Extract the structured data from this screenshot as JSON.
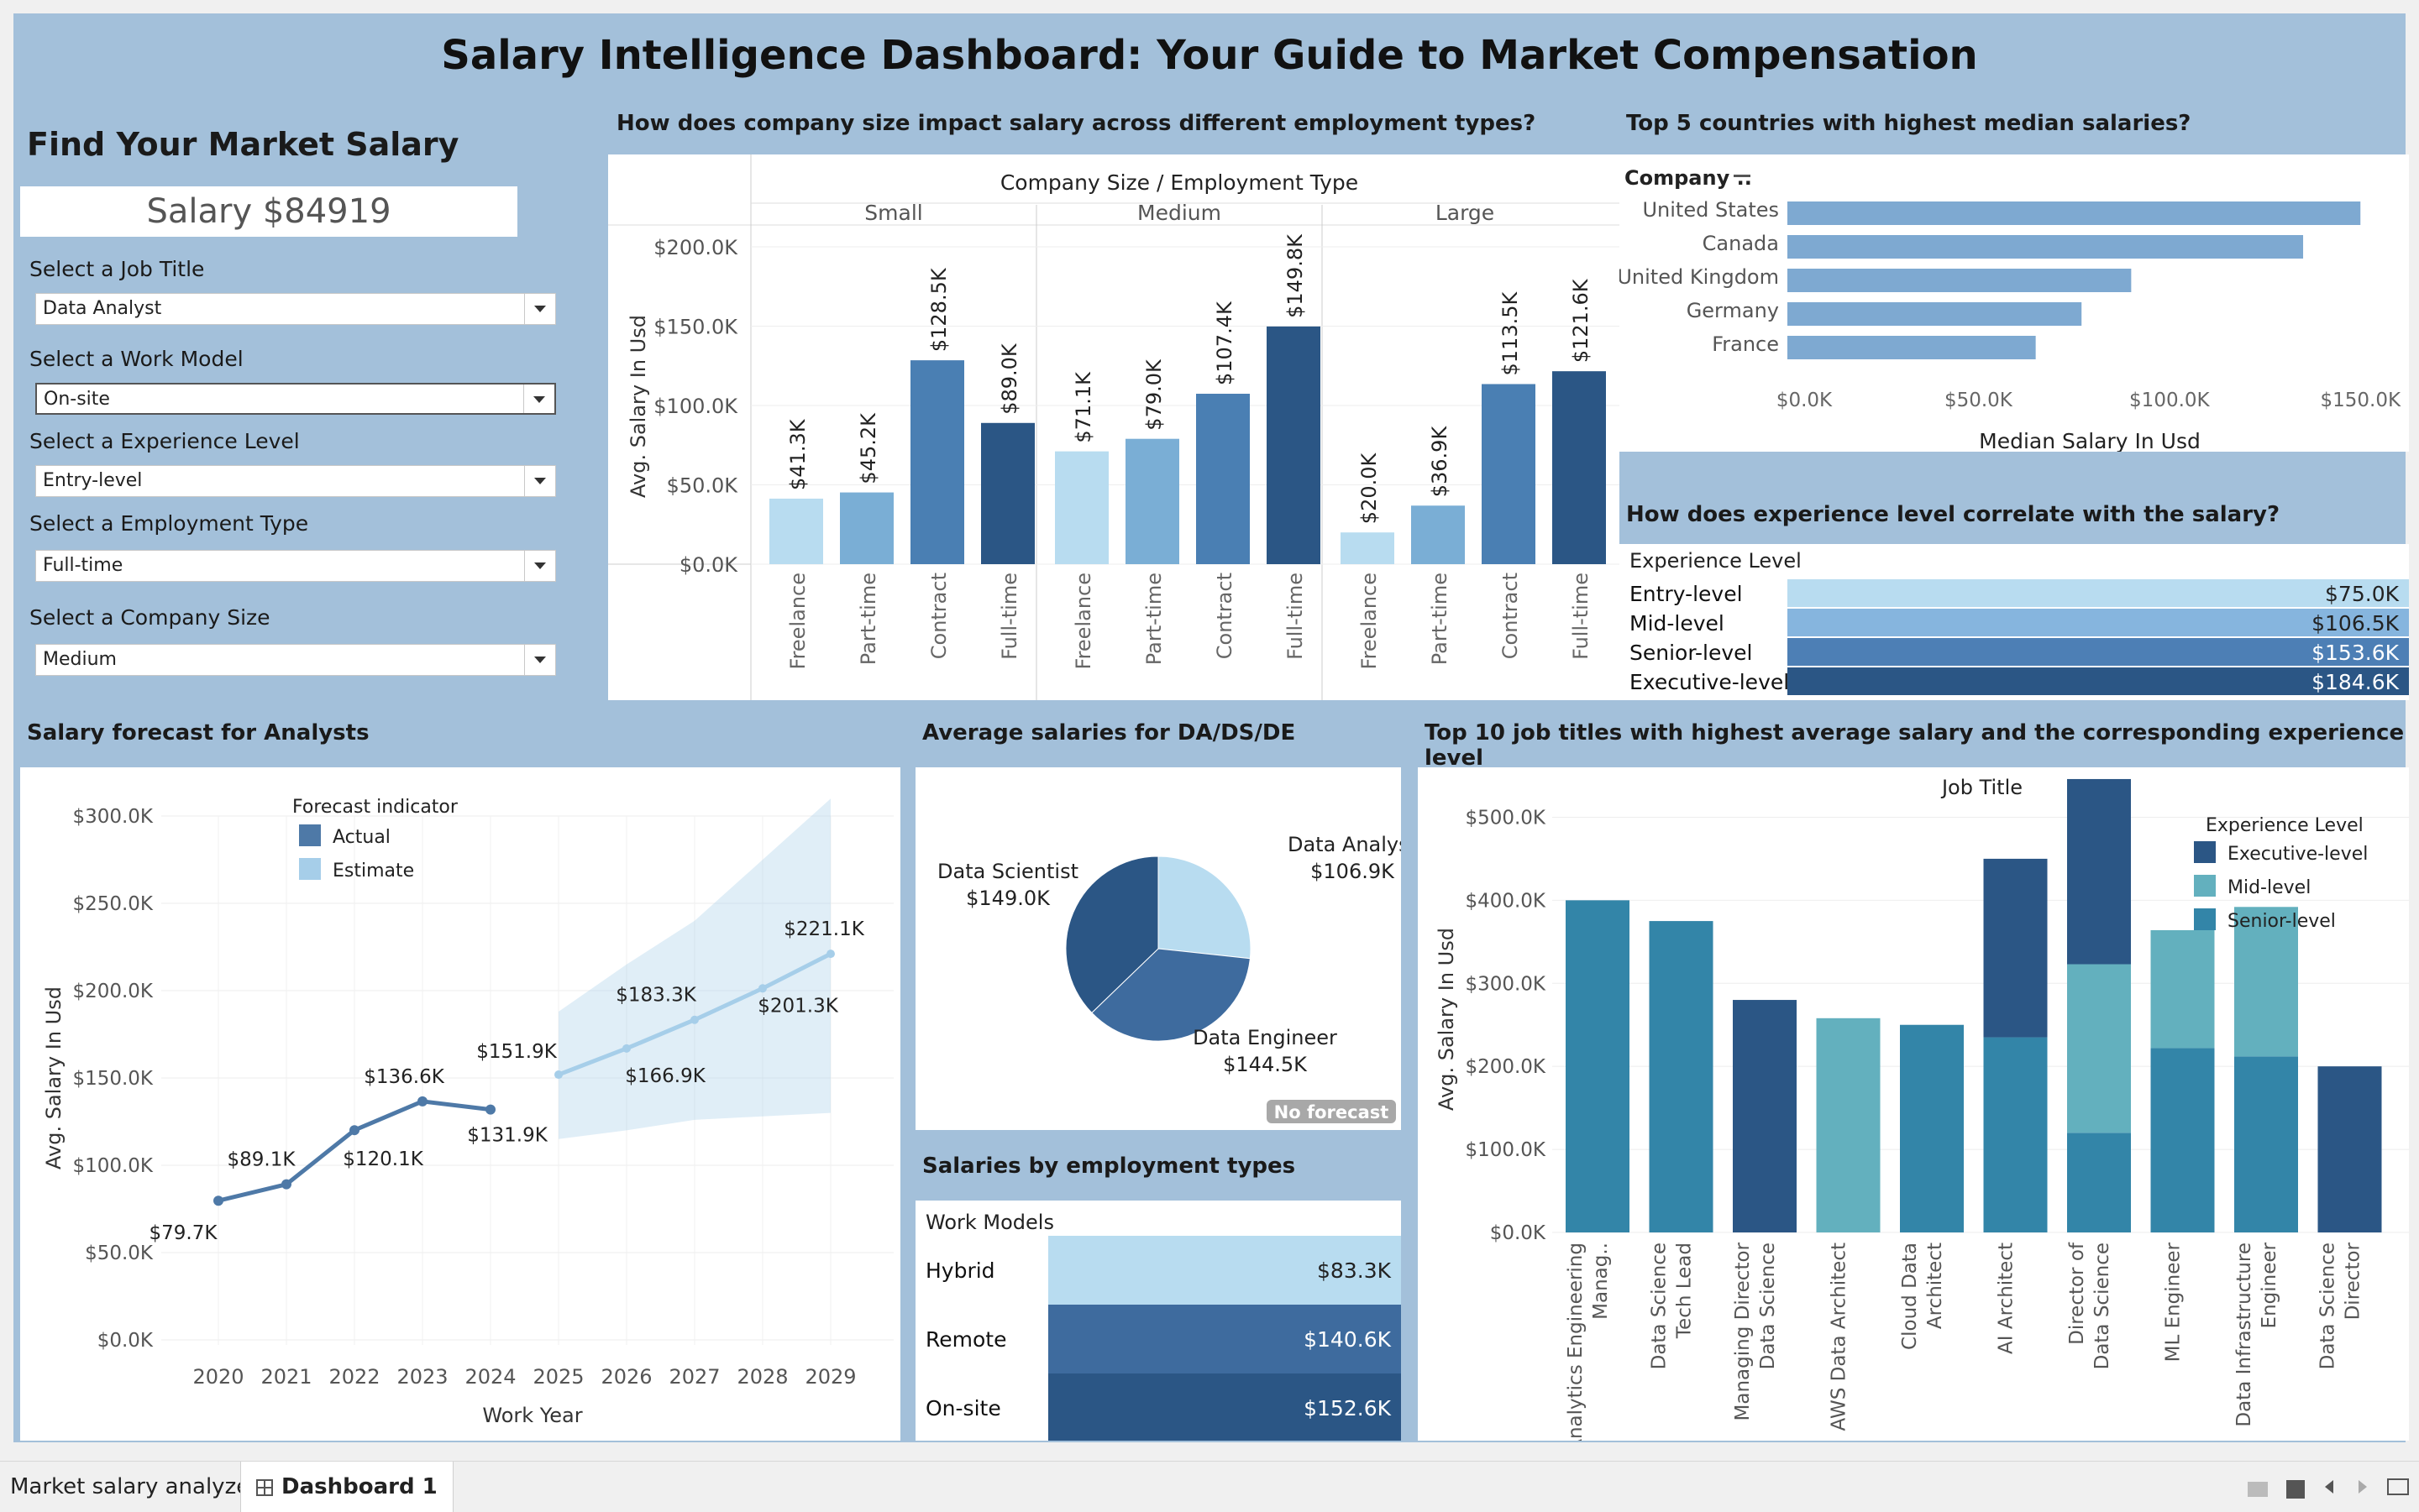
{
  "title": "Salary Intelligence Dashboard: Your Guide to Market Compensation",
  "filters": {
    "heading": "Find Your Market Salary",
    "salary": "Salary $84919",
    "job_title_label": "Select a Job Title",
    "job_title_value": "Data Analyst",
    "work_model_label": "Select a Work Model",
    "work_model_value": "On-site",
    "experience_label": "Select a Experience Level",
    "experience_value": "Entry-level",
    "employment_label": "Select a Employment Type",
    "employment_value": "Full-time",
    "company_size_label": "Select a Company Size",
    "company_size_value": "Medium"
  },
  "company_size_chart": {
    "question": "How does company size impact salary across different employment types?",
    "header": "Company Size  /  Employment Type",
    "ylabel": "Avg. Salary In Usd",
    "yticks": [
      "$200.0K",
      "$150.0K",
      "$100.0K",
      "$50.0K",
      "$0.0K"
    ],
    "colors": [
      "#b8dcf0",
      "#7aaed5",
      "#4a7fb3",
      "#2b5685"
    ]
  },
  "countries_chart": {
    "question": "Top 5 countries with highest median salaries?",
    "header": "Company ..",
    "xlabel": "Median Salary In Usd",
    "xticks": [
      "$0.0K",
      "$50.0K",
      "$100.0K",
      "$150.0K"
    ],
    "color": "#7ea9d1"
  },
  "experience_chart": {
    "question": "How does experience level correlate with the salary?",
    "header": "Experience Level",
    "rows": [
      {
        "label": "Entry-level",
        "value": "$75.0K",
        "color": "#b8dcf0",
        "text_color": "#222"
      },
      {
        "label": "Mid-level",
        "value": "$106.5K",
        "color": "#86b5de",
        "text_color": "#222"
      },
      {
        "label": "Senior-level",
        "value": "$153.6K",
        "color": "#4d7fb5",
        "text_color": "#fff"
      },
      {
        "label": "Executive-level",
        "value": "$184.6K",
        "color": "#2b5685",
        "text_color": "#fff"
      }
    ]
  },
  "forecast_chart": {
    "question": "Salary forecast for Analysts",
    "legend_title": "Forecast indicator",
    "legend_actual": "Actual",
    "legend_estimate": "Estimate",
    "ylabel": "Avg. Salary In Usd",
    "xlabel": "Work Year",
    "yticks": [
      "$300.0K",
      "$250.0K",
      "$200.0K",
      "$150.0K",
      "$100.0K",
      "$50.0K",
      "$0.0K"
    ],
    "actual_color": "#4e79a7",
    "estimate_color": "#a6cee9"
  },
  "pie_chart": {
    "question": "Average salaries for DA/DS/DE",
    "badge": "No forecast"
  },
  "work_models": {
    "question": "Salaries by employment types",
    "header": "Work Models",
    "rows": [
      {
        "label": "Hybrid",
        "value": "$83.3K",
        "color": "#b8dcf0",
        "text_color": "#222"
      },
      {
        "label": "Remote",
        "value": "$140.6K",
        "color": "#3e6b9e",
        "text_color": "#fff"
      },
      {
        "label": "On-site",
        "value": "$152.6K",
        "color": "#2b5685",
        "text_color": "#fff"
      }
    ]
  },
  "top10_chart": {
    "question": "Top 10 job titles with highest average salary and the corresponding experience level",
    "header": "Job Title",
    "ylabel": "Avg. Salary In Usd",
    "yticks": [
      "$500.0K",
      "$400.0K",
      "$300.0K",
      "$200.0K",
      "$100.0K",
      "$0.0K"
    ],
    "legend_title": "Experience Level",
    "legend": [
      {
        "label": "Executive-level",
        "color": "#2b5685"
      },
      {
        "label": "Mid-level",
        "color": "#63b0be"
      },
      {
        "label": "Senior-level",
        "color": "#3385a8"
      }
    ]
  },
  "tabs": {
    "sheet": "Market salary analyzer",
    "dashboard": "Dashboard 1"
  },
  "chart_data": [
    {
      "type": "bar",
      "title": "How does company size impact salary across different employment types?",
      "ylabel": "Avg. Salary In Usd",
      "ylim": [
        0,
        200000
      ],
      "groups": [
        {
          "name": "Small",
          "categories": [
            "Freelance",
            "Part-time",
            "Contract",
            "Full-time"
          ],
          "values": [
            41300,
            45200,
            128500,
            89000
          ],
          "labels": [
            "$41.3K",
            "$45.2K",
            "$128.5K",
            "$89.0K"
          ]
        },
        {
          "name": "Medium",
          "categories": [
            "Freelance",
            "Part-time",
            "Contract",
            "Full-time"
          ],
          "values": [
            71100,
            79000,
            107400,
            149800
          ],
          "labels": [
            "$71.1K",
            "$79.0K",
            "$107.4K",
            "$149.8K"
          ]
        },
        {
          "name": "Large",
          "categories": [
            "Freelance",
            "Part-time",
            "Contract",
            "Full-time"
          ],
          "values": [
            20000,
            36900,
            113500,
            121600
          ],
          "labels": [
            "$20.0K",
            "$36.9K",
            "$113.5K",
            "$121.6K"
          ]
        }
      ]
    },
    {
      "type": "bar",
      "orientation": "horizontal",
      "title": "Top 5 countries with highest median salaries?",
      "xlabel": "Median Salary In Usd",
      "xlim": [
        0,
        155000
      ],
      "categories": [
        "United States",
        "Canada",
        "United Kingdom",
        "Germany",
        "France"
      ],
      "values": [
        150000,
        135000,
        90000,
        77000,
        65000
      ]
    },
    {
      "type": "line",
      "title": "Salary forecast for Analysts",
      "xlabel": "Work Year",
      "ylabel": "Avg. Salary In Usd",
      "ylim": [
        0,
        300000
      ],
      "x": [
        2020,
        2021,
        2022,
        2023,
        2024,
        2025,
        2026,
        2027,
        2028,
        2029
      ],
      "series": [
        {
          "name": "Actual",
          "x": [
            2020,
            2021,
            2022,
            2023,
            2024
          ],
          "values": [
            79700,
            89100,
            120100,
            136600,
            131900
          ],
          "labels": [
            "$79.7K",
            "$89.1K",
            "$120.1K",
            "$136.6K",
            "$131.9K"
          ]
        },
        {
          "name": "Estimate",
          "x": [
            2025,
            2026,
            2027,
            2028,
            2029
          ],
          "values": [
            151900,
            166900,
            183300,
            201300,
            221100
          ],
          "labels": [
            "$151.9K",
            "$166.9K",
            "$183.3K",
            "$201.3K",
            "$221.1K"
          ]
        }
      ],
      "band_upper": [
        188000,
        215000,
        240000,
        275000,
        310000
      ],
      "band_lower": [
        115000,
        120000,
        126000,
        128000,
        130000
      ]
    },
    {
      "type": "pie",
      "title": "Average salaries for DA/DS/DE",
      "categories": [
        "Data Analyst",
        "Data Engineer",
        "Data Scientist"
      ],
      "values": [
        106900,
        144500,
        149000
      ],
      "labels": [
        "$106.9K",
        "$144.5K",
        "$149.0K"
      ],
      "colors": [
        "#b8dcf0",
        "#3e6b9e",
        "#2b5685"
      ]
    },
    {
      "type": "bar",
      "stacked": true,
      "title": "Top 10 job titles with highest average salary and the corresponding experience level",
      "ylabel": "Avg. Salary In Usd",
      "ylim": [
        0,
        550000
      ],
      "categories": [
        "Analytics Engineering Manag..",
        "Data Science Tech Lead",
        "Managing Director Data Science",
        "AWS Data Architect",
        "Cloud Data Architect",
        "AI Architect",
        "Director of Data Science",
        "ML Engineer",
        "Data Infrastructure Engineer",
        "Data Science Director"
      ],
      "series": [
        {
          "name": "Senior-level",
          "values": [
            400000,
            375000,
            0,
            0,
            250000,
            235000,
            120000,
            222000,
            212000,
            0
          ]
        },
        {
          "name": "Mid-level",
          "values": [
            0,
            0,
            0,
            258000,
            0,
            0,
            203000,
            142000,
            180000,
            0
          ]
        },
        {
          "name": "Executive-level",
          "values": [
            0,
            0,
            280000,
            0,
            0,
            215000,
            223000,
            0,
            0,
            200000
          ]
        }
      ]
    }
  ]
}
